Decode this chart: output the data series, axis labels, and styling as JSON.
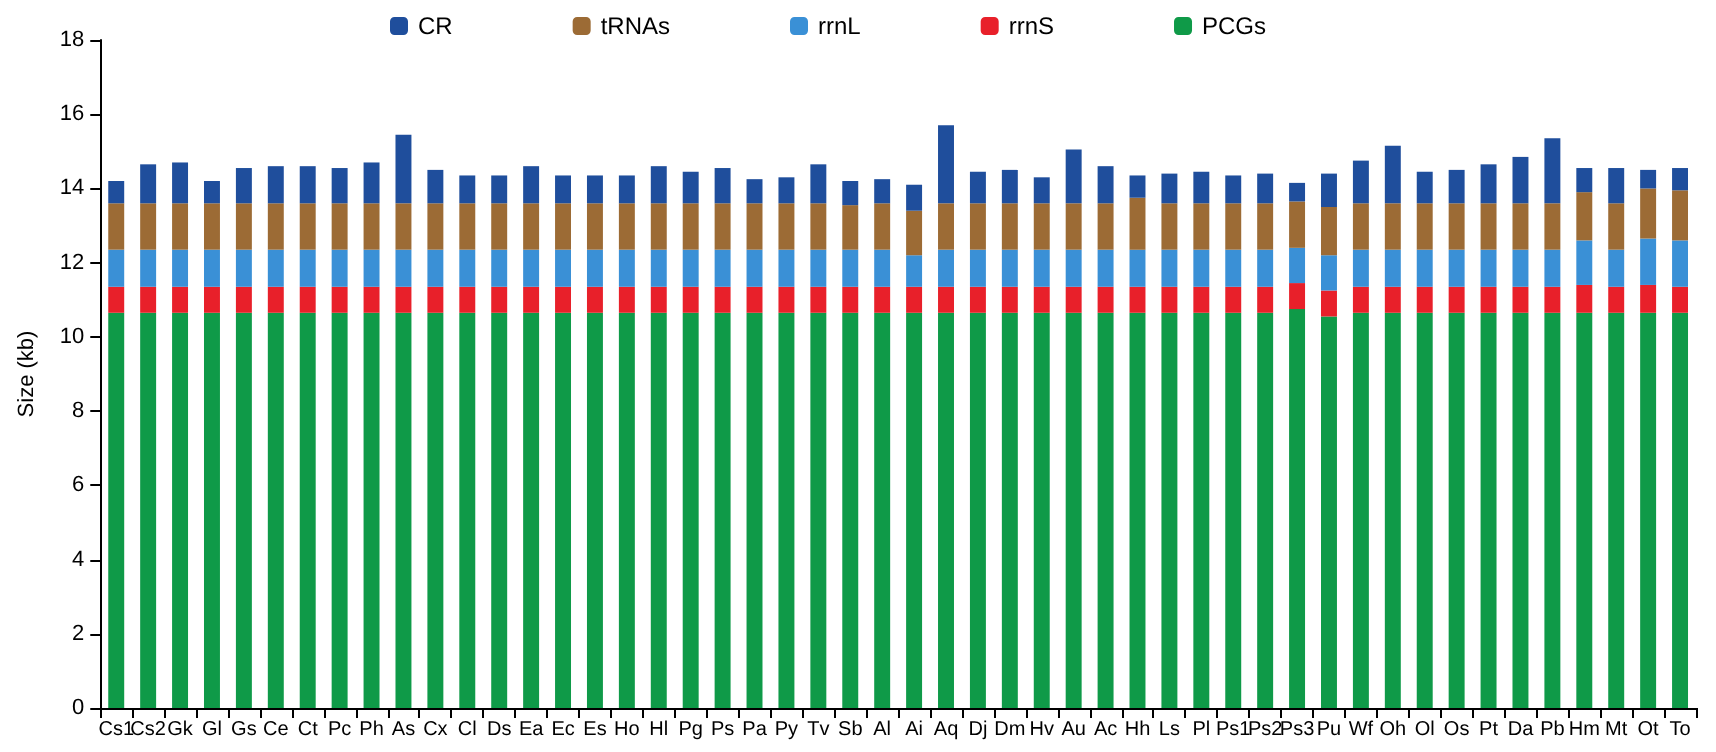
{
  "chart_data": {
    "type": "bar",
    "stacked": true,
    "ylabel": "Size (kb)",
    "categories": [
      "Cs1",
      "Cs2",
      "Gk",
      "Gl",
      "Gs",
      "Ce",
      "Ct",
      "Pc",
      "Ph",
      "As",
      "Cx",
      "Cl",
      "Ds",
      "Ea",
      "Ec",
      "Es",
      "Ho",
      "Hl",
      "Pg",
      "Ps",
      "Pa",
      "Py",
      "Tv",
      "Sb",
      "Al",
      "Ai",
      "Aq",
      "Dj",
      "Dm",
      "Hv",
      "Au",
      "Ac",
      "Hh",
      "Ls",
      "Pl",
      "Ps1",
      "Ps2",
      "Ps3",
      "Pu",
      "Wf",
      "Oh",
      "Ol",
      "Os",
      "Pt",
      "Da",
      "Pb",
      "Hm",
      "Mt",
      "Ot",
      "To"
    ],
    "series": [
      {
        "name": "PCGs",
        "color": "#0f9a48",
        "values": [
          10.65,
          10.65,
          10.65,
          10.65,
          10.65,
          10.65,
          10.65,
          10.65,
          10.65,
          10.65,
          10.65,
          10.65,
          10.65,
          10.65,
          10.65,
          10.65,
          10.65,
          10.65,
          10.65,
          10.65,
          10.65,
          10.65,
          10.65,
          10.65,
          10.65,
          10.65,
          10.65,
          10.65,
          10.65,
          10.65,
          10.65,
          10.65,
          10.65,
          10.65,
          10.65,
          10.65,
          10.65,
          10.75,
          10.55,
          10.65,
          10.65,
          10.65,
          10.65,
          10.65,
          10.65,
          10.65,
          10.65,
          10.65,
          10.65,
          10.65
        ]
      },
      {
        "name": "rrnS",
        "color": "#e8202a",
        "values": [
          0.7,
          0.7,
          0.7,
          0.7,
          0.7,
          0.7,
          0.7,
          0.7,
          0.7,
          0.7,
          0.7,
          0.7,
          0.7,
          0.7,
          0.7,
          0.7,
          0.7,
          0.7,
          0.7,
          0.7,
          0.7,
          0.7,
          0.7,
          0.7,
          0.7,
          0.7,
          0.7,
          0.7,
          0.7,
          0.7,
          0.7,
          0.7,
          0.7,
          0.7,
          0.7,
          0.7,
          0.7,
          0.7,
          0.7,
          0.7,
          0.7,
          0.7,
          0.7,
          0.7,
          0.7,
          0.7,
          0.75,
          0.7,
          0.75,
          0.7
        ]
      },
      {
        "name": "rrnL",
        "color": "#3a90d6",
        "values": [
          1.0,
          1.0,
          1.0,
          1.0,
          1.0,
          1.0,
          1.0,
          1.0,
          1.0,
          1.0,
          1.0,
          1.0,
          1.0,
          1.0,
          1.0,
          1.0,
          1.0,
          1.0,
          1.0,
          1.0,
          1.0,
          1.0,
          1.0,
          1.0,
          1.0,
          0.85,
          1.0,
          1.0,
          1.0,
          1.0,
          1.0,
          1.0,
          1.0,
          1.0,
          1.0,
          1.0,
          1.0,
          0.95,
          0.95,
          1.0,
          1.0,
          1.0,
          1.0,
          1.0,
          1.0,
          1.0,
          1.2,
          1.0,
          1.25,
          1.25
        ]
      },
      {
        "name": "tRNAs",
        "color": "#9c6b35",
        "values": [
          1.25,
          1.25,
          1.25,
          1.25,
          1.25,
          1.25,
          1.25,
          1.25,
          1.25,
          1.25,
          1.25,
          1.25,
          1.25,
          1.25,
          1.25,
          1.25,
          1.25,
          1.25,
          1.25,
          1.25,
          1.25,
          1.25,
          1.25,
          1.2,
          1.25,
          1.2,
          1.25,
          1.25,
          1.25,
          1.25,
          1.25,
          1.25,
          1.4,
          1.25,
          1.25,
          1.25,
          1.25,
          1.25,
          1.3,
          1.25,
          1.25,
          1.25,
          1.25,
          1.25,
          1.25,
          1.25,
          1.3,
          1.25,
          1.35,
          1.35
        ]
      },
      {
        "name": "CR",
        "color": "#1f4e9c",
        "values": [
          0.6,
          1.05,
          1.1,
          0.6,
          0.95,
          1.0,
          1.0,
          0.95,
          1.1,
          1.85,
          0.9,
          0.75,
          0.75,
          1.0,
          0.75,
          0.75,
          0.75,
          1.0,
          0.85,
          0.95,
          0.65,
          0.7,
          1.05,
          0.65,
          0.65,
          0.7,
          2.1,
          0.85,
          0.9,
          0.7,
          1.45,
          1.0,
          0.6,
          0.8,
          0.85,
          0.75,
          0.8,
          0.5,
          0.9,
          1.15,
          1.55,
          0.85,
          0.9,
          1.05,
          1.25,
          1.75,
          0.65,
          0.95,
          0.5,
          0.6
        ]
      }
    ],
    "ylim": [
      0,
      18
    ],
    "yticks": [
      0,
      2,
      4,
      6,
      8,
      10,
      12,
      14,
      16,
      18
    ],
    "grid": false,
    "legend": "top"
  }
}
